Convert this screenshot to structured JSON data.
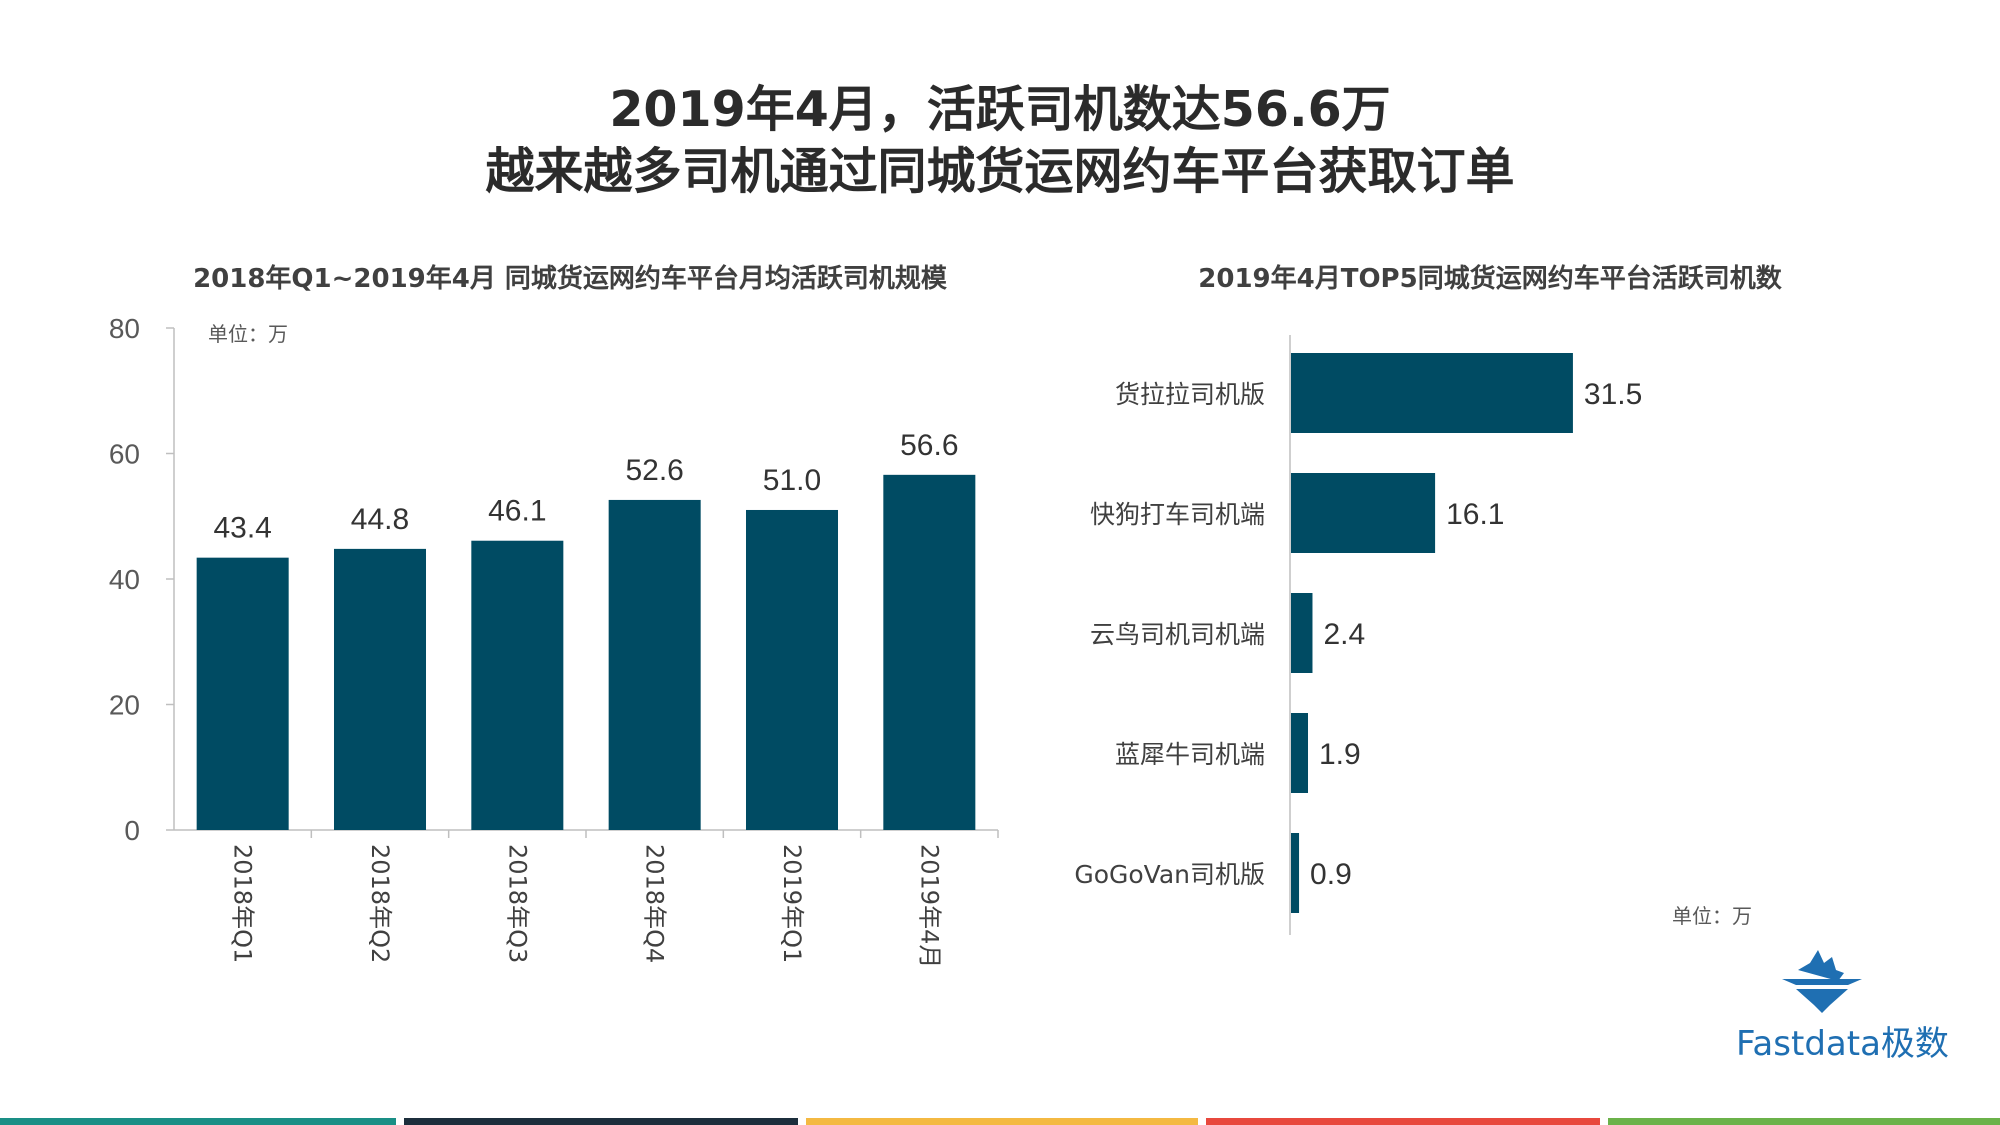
{
  "header": {
    "title_line1": "2019年4月，活跃司机数达56.6万",
    "title_line2": "越来越多司机通过同城货运网约车平台获取订单"
  },
  "chart_data": [
    {
      "type": "bar",
      "title": "2018年Q1~2019年4月 同城货运网约车平台月均活跃司机规模",
      "unit_label": "单位：万",
      "categories": [
        "2018年Q1",
        "2018年Q2",
        "2018年Q3",
        "2018年Q4",
        "2019年Q1",
        "2019年4月"
      ],
      "values": [
        43.4,
        44.8,
        46.1,
        52.6,
        51.0,
        56.6
      ],
      "value_labels": [
        "43.4",
        "44.8",
        "46.1",
        "52.6",
        "51.0",
        "56.6"
      ],
      "ylim": [
        0,
        80
      ],
      "yticks": [
        0,
        20,
        40,
        60,
        80
      ],
      "orientation": "vertical",
      "color": "#004b63"
    },
    {
      "type": "bar",
      "title": "2019年4月TOP5同城货运网约车平台活跃司机数",
      "unit_label": "单位：万",
      "categories": [
        "货拉拉司机版",
        "快狗打车司机端",
        "云鸟司机司机端",
        "蓝犀牛司机端",
        "GoGoVan司机版"
      ],
      "values": [
        31.5,
        16.1,
        2.4,
        1.9,
        0.9
      ],
      "value_labels": [
        "31.5",
        "16.1",
        "2.4",
        "1.9",
        "0.9"
      ],
      "orientation": "horizontal",
      "color": "#004b63"
    }
  ],
  "logo": {
    "text": "Fastdata极数",
    "color": "#1f6fb2"
  },
  "footer_colors": [
    "#1a8f86",
    "#1c2e3c",
    "#f4b942",
    "#e8483d",
    "#6bb24a"
  ]
}
